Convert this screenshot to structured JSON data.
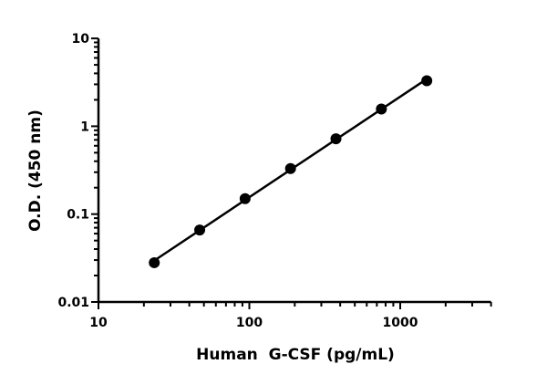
{
  "chart_data": {
    "type": "scatter",
    "title": "",
    "xlabel": "Human  G-CSF (pg/mL)",
    "ylabel": "O.D. (450 nm)",
    "x_scale": "log",
    "y_scale": "log",
    "xlim": [
      10,
      4000
    ],
    "ylim": [
      0.01,
      10
    ],
    "grid": false,
    "x_ticks": [
      {
        "value": 10,
        "label": "10"
      },
      {
        "value": 100,
        "label": "100"
      },
      {
        "value": 1000,
        "label": "1000"
      }
    ],
    "y_ticks": [
      {
        "value": 0.01,
        "label": "0.01"
      },
      {
        "value": 0.1,
        "label": "0.1"
      },
      {
        "value": 1,
        "label": "1"
      },
      {
        "value": 10,
        "label": "10"
      }
    ],
    "series": [
      {
        "x": [
          23.44,
          46.88,
          93.75,
          187.5,
          375,
          750,
          1500
        ],
        "y": [
          0.028,
          0.066,
          0.15,
          0.33,
          0.72,
          1.57,
          3.3
        ],
        "marker": "circle",
        "line": "fit",
        "color": "#000000"
      }
    ]
  }
}
